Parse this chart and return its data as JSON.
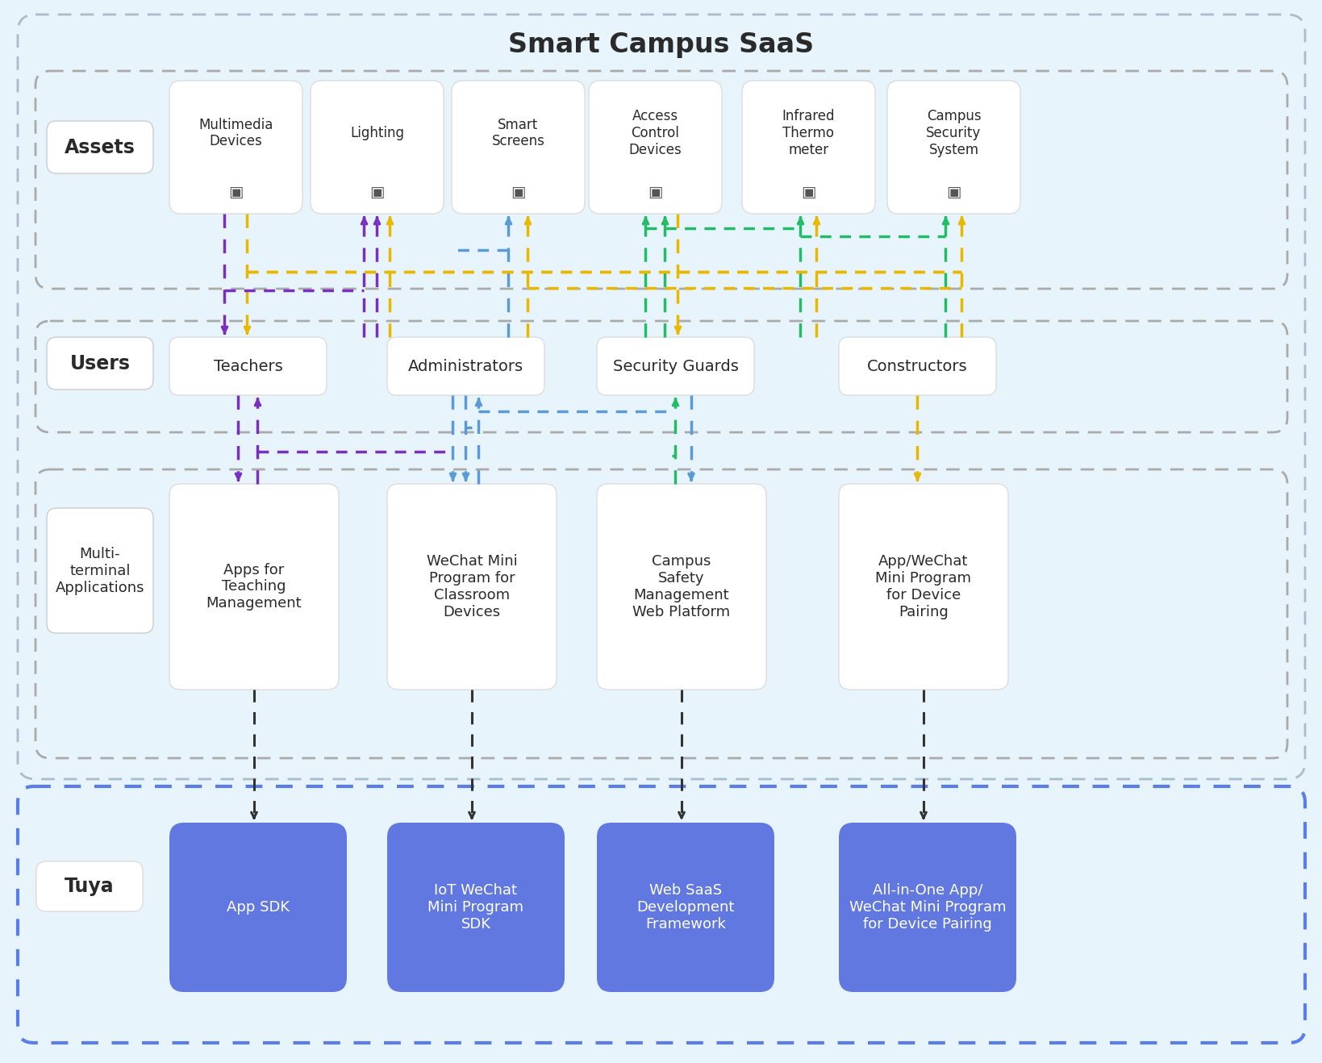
{
  "title": "Smart Campus SaaS",
  "bg_color": "#e8f4fb",
  "white_box_color": "#ffffff",
  "blue_box_color": "#6178e0",
  "tuya_border_color": "#5b7de8",
  "saas_border_color": "#aabbcc",
  "label_color": "#222222",
  "white_text": "#ffffff",
  "arrow_purple": "#7b2fbe",
  "arrow_blue": "#5b9bd5",
  "arrow_green": "#22bb66",
  "arrow_yellow": "#e8b800",
  "arrow_black": "#333333",
  "assets_label": "Assets",
  "users_label": "Users",
  "multi_label": "Multi-\nterminal\nApplications",
  "tuya_label": "Tuya",
  "asset_labels": [
    "Multimedia\nDevices",
    "Lighting",
    "Smart\nScreens",
    "Access\nControl\nDevices",
    "Infrared\nThermo\nmeter",
    "Campus\nSecurity\nSystem"
  ],
  "user_boxes": [
    "Teachers",
    "Administrators",
    "Security Guards",
    "Constructors"
  ],
  "app_boxes": [
    "Apps for\nTeaching\nManagement",
    "WeChat Mini\nProgram for\nClassroom\nDevices",
    "Campus\nSafety\nManagement\nWeb Platform",
    "App/WeChat\nMini Program\nfor Device\nPairing"
  ],
  "tuya_boxes": [
    "App SDK",
    "IoT WeChat\nMini Program\nSDK",
    "Web SaaS\nDevelopment\nFramework",
    "All-in-One App/\nWeChat Mini Program\nfor Device Pairing"
  ]
}
